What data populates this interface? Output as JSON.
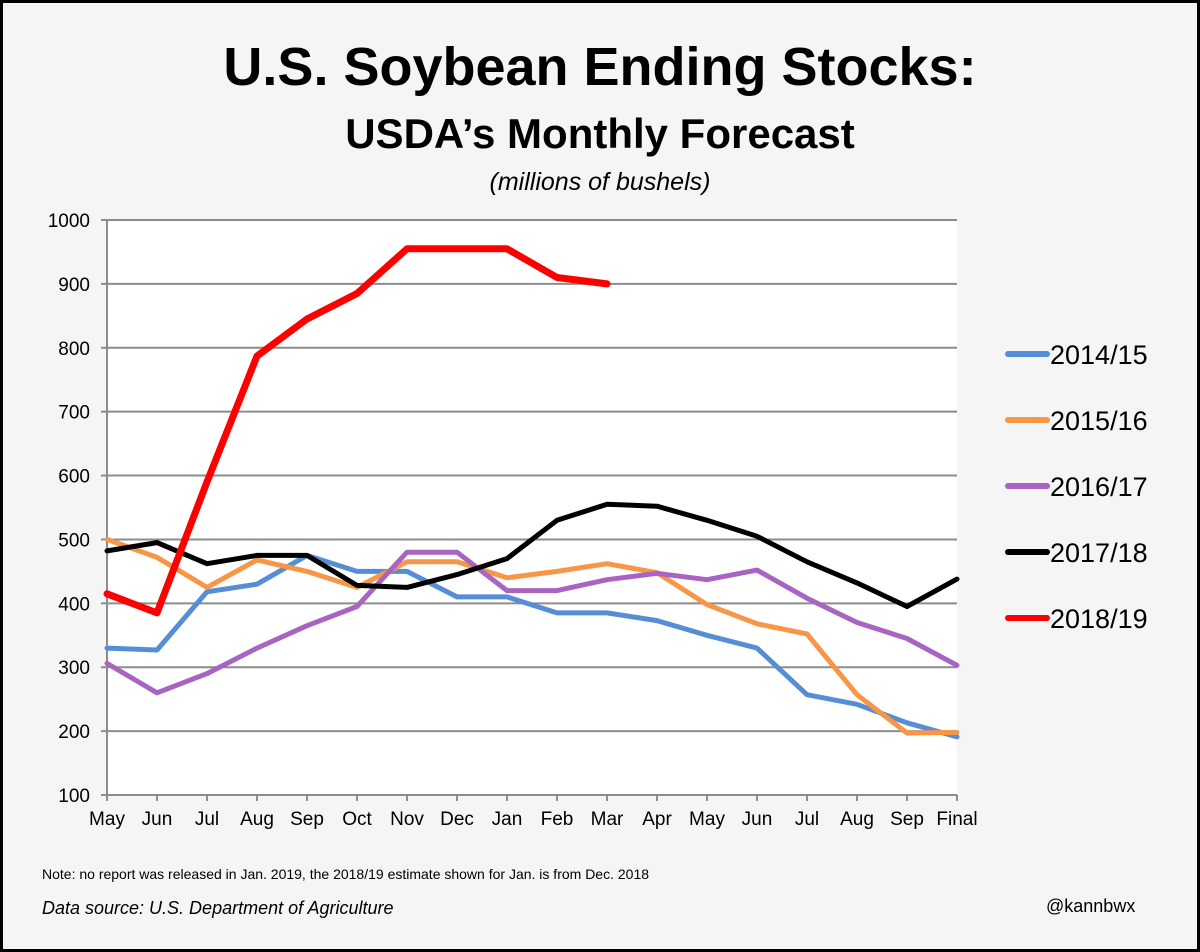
{
  "chart_data": {
    "type": "line",
    "title": "U.S. Soybean Ending Stocks:",
    "subtitle": "USDA’s Monthly Forecast",
    "units": "(millions of bushels)",
    "xlabel": "",
    "ylabel": "",
    "ylim": [
      100,
      1000
    ],
    "yticks": [
      "100",
      "200",
      "300",
      "400",
      "500",
      "600",
      "700",
      "800",
      "900",
      "1000"
    ],
    "ytick_values": [
      100,
      200,
      300,
      400,
      500,
      600,
      700,
      800,
      900,
      1000
    ],
    "categories": [
      "May",
      "Jun",
      "Jul",
      "Aug",
      "Sep",
      "Oct",
      "Nov",
      "Dec",
      "Jan",
      "Feb",
      "Mar",
      "Apr",
      "May",
      "Jun",
      "Jul",
      "Aug",
      "Sep",
      "Final"
    ],
    "grid": true,
    "legend_position": "right",
    "series": [
      {
        "name": "2014/15",
        "color": "#558ed5",
        "values": [
          330,
          327,
          418,
          430,
          475,
          450,
          450,
          410,
          410,
          385,
          385,
          373,
          350,
          330,
          257,
          242,
          213,
          191
        ]
      },
      {
        "name": "2015/16",
        "color": "#f79646",
        "values": [
          500,
          472,
          425,
          468,
          450,
          425,
          465,
          465,
          440,
          450,
          462,
          448,
          398,
          368,
          352,
          257,
          197,
          198
        ]
      },
      {
        "name": "2016/17",
        "color": "#a964c1",
        "values": [
          306,
          260,
          290,
          330,
          365,
          395,
          480,
          480,
          420,
          420,
          437,
          447,
          437,
          452,
          408,
          370,
          345,
          303
        ]
      },
      {
        "name": "2017/18",
        "color": "#000000",
        "values": [
          482,
          495,
          462,
          475,
          475,
          428,
          425,
          445,
          470,
          530,
          555,
          552,
          530,
          505,
          465,
          432,
          395,
          438
        ]
      },
      {
        "name": "2018/19",
        "color": "#ff0000",
        "values": [
          415,
          385,
          590,
          787,
          845,
          885,
          955,
          955,
          955,
          910,
          900,
          null,
          null,
          null,
          null,
          null,
          null,
          null
        ]
      }
    ]
  },
  "footer": {
    "note": "Note: no report was released in Jan. 2019, the 2018/19 estimate shown for Jan. is from Dec. 2018",
    "source": "Data source: U.S. Department of Agriculture",
    "credit": "@kannbwx"
  }
}
